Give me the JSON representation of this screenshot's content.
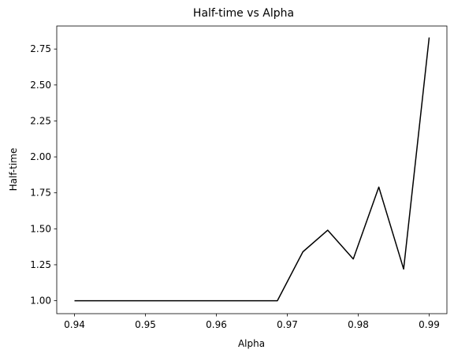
{
  "chart_data": {
    "type": "line",
    "title": "Half-time vs Alpha",
    "xlabel": "Alpha",
    "ylabel": "Half-time",
    "xlim": [
      0.9375,
      0.9925
    ],
    "ylim": [
      0.91,
      2.91
    ],
    "x_ticks": [
      0.94,
      0.95,
      0.96,
      0.97,
      0.98,
      0.99
    ],
    "x_tick_labels": [
      "0.94",
      "0.95",
      "0.96",
      "0.97",
      "0.98",
      "0.99"
    ],
    "y_ticks": [
      1.0,
      1.25,
      1.5,
      1.75,
      2.0,
      2.25,
      2.5,
      2.75
    ],
    "y_tick_labels": [
      "1.00",
      "1.25",
      "1.50",
      "1.75",
      "2.00",
      "2.25",
      "2.50",
      "2.75"
    ],
    "grid": false,
    "line_color": "#000000",
    "x": [
      0.94,
      0.9435,
      0.947,
      0.9505,
      0.954,
      0.9575,
      0.961,
      0.9645,
      0.9686,
      0.9722,
      0.9757,
      0.9793,
      0.9829,
      0.9864,
      0.99
    ],
    "y": [
      1.0,
      1.0,
      1.0,
      1.0,
      1.0,
      1.0,
      1.0,
      1.0,
      1.0,
      1.34,
      1.49,
      1.29,
      1.79,
      1.22,
      2.83
    ]
  }
}
